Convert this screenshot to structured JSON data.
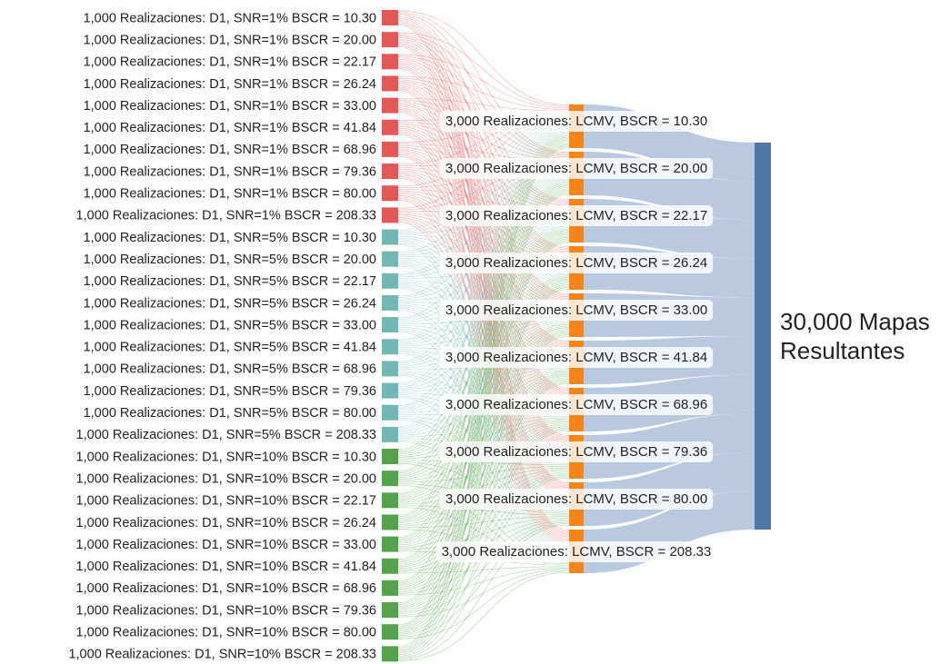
{
  "left_nodes": [
    "1,000 Realizaciones: D1, SNR=1% BSCR = 10.30",
    "1,000 Realizaciones: D1, SNR=1% BSCR = 20.00",
    "1,000 Realizaciones: D1, SNR=1% BSCR = 22.17",
    "1,000 Realizaciones: D1, SNR=1% BSCR = 26.24",
    "1,000 Realizaciones: D1, SNR=1% BSCR = 33.00",
    "1,000 Realizaciones: D1, SNR=1% BSCR = 41.84",
    "1,000 Realizaciones: D1, SNR=1% BSCR = 68.96",
    "1,000 Realizaciones: D1, SNR=1% BSCR = 79.36",
    "1,000 Realizaciones: D1, SNR=1% BSCR = 80.00",
    "1,000 Realizaciones: D1, SNR=1% BSCR = 208.33",
    "1,000 Realizaciones: D1, SNR=5% BSCR = 10.30",
    "1,000 Realizaciones: D1, SNR=5% BSCR = 20.00",
    "1,000 Realizaciones: D1, SNR=5% BSCR = 22.17",
    "1,000 Realizaciones: D1, SNR=5% BSCR = 26.24",
    "1,000 Realizaciones: D1, SNR=5% BSCR = 33.00",
    "1,000 Realizaciones: D1, SNR=5% BSCR = 41.84",
    "1,000 Realizaciones: D1, SNR=5% BSCR = 68.96",
    "1,000 Realizaciones: D1, SNR=5% BSCR = 79.36",
    "1,000 Realizaciones: D1, SNR=5% BSCR = 80.00",
    "1,000 Realizaciones: D1, SNR=5% BSCR = 208.33",
    "1,000 Realizaciones: D1, SNR=10% BSCR = 10.30",
    "1,000 Realizaciones: D1, SNR=10% BSCR = 20.00",
    "1,000 Realizaciones: D1, SNR=10% BSCR = 22.17",
    "1,000 Realizaciones: D1, SNR=10% BSCR = 26.24",
    "1,000 Realizaciones: D1, SNR=10% BSCR = 33.00",
    "1,000 Realizaciones: D1, SNR=10% BSCR = 41.84",
    "1,000 Realizaciones: D1, SNR=10% BSCR = 68.96",
    "1,000 Realizaciones: D1, SNR=10% BSCR = 79.36",
    "1,000 Realizaciones: D1, SNR=10% BSCR = 80.00",
    "1,000 Realizaciones: D1, SNR=10% BSCR = 208.33"
  ],
  "left_colors": [
    "#e45756",
    "#72b7b2",
    "#54a24b"
  ],
  "middle_nodes": [
    "3,000 Realizaciones: LCMV, BSCR = 10.30",
    "3,000 Realizaciones: LCMV, BSCR = 20.00",
    "3,000 Realizaciones: LCMV, BSCR = 22.17",
    "3,000 Realizaciones: LCMV, BSCR = 26.24",
    "3,000 Realizaciones: LCMV, BSCR = 33.00",
    "3,000 Realizaciones: LCMV, BSCR = 41.84",
    "3,000 Realizaciones: LCMV, BSCR = 68.96",
    "3,000 Realizaciones: LCMV, BSCR = 79.36",
    "3,000 Realizaciones: LCMV, BSCR = 80.00",
    "3,000 Realizaciones: LCMV, BSCR = 208.33"
  ],
  "middle_color": "#f58518",
  "right_node": {
    "lines": [
      "30,000 Mapas",
      "Resultantes"
    ],
    "color": "#4c78a8"
  }
}
